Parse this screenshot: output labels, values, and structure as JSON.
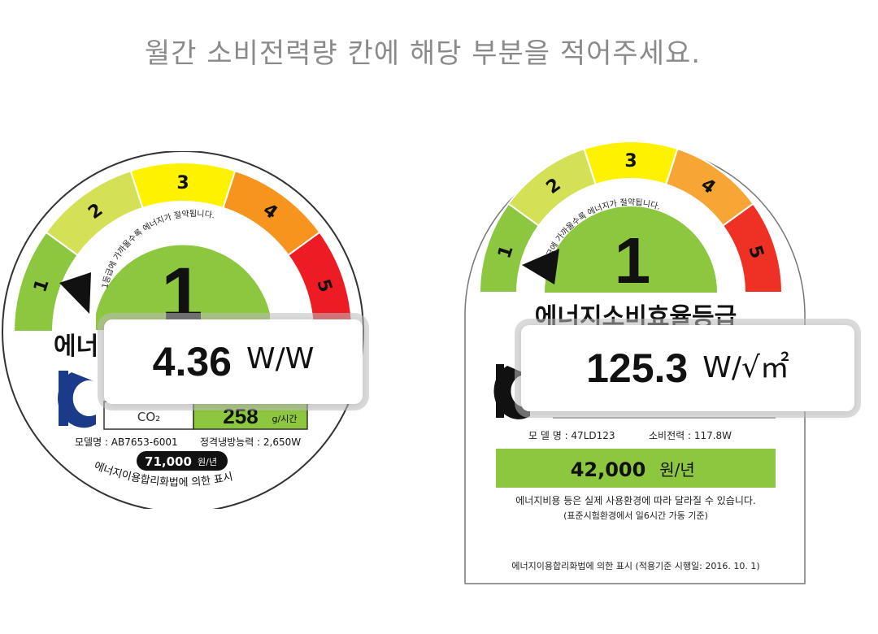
{
  "instruction": "월간 소비전력량 칸에 해당 부분을 적어주세요.",
  "left_label": {
    "grades": [
      "1",
      "2",
      "3",
      "4",
      "5"
    ],
    "grade_colors": [
      "#8dc63f",
      "#d4e157",
      "#fff200",
      "#f7941d",
      "#ed1c24"
    ],
    "current_grade": "1",
    "arc_text": "1등급에 가까울수록 에너지가 절약됩니다.",
    "heading_partial": "에너",
    "co2_label": "CO₂",
    "co2_value": "258",
    "co2_unit": "g/시간",
    "model_label": "모델명 : AB7653-6001",
    "capacity_label": "정격냉방능력 : 2,650W",
    "annual_cost": "71,000",
    "annual_cost_unit": "원/년",
    "footer_arc": "에너지이용합리화법에 의한 표시",
    "overlay_value": "4.36",
    "overlay_unit": "W/W"
  },
  "right_label": {
    "grades": [
      "1",
      "2",
      "3",
      "4",
      "5"
    ],
    "grade_colors": [
      "#8dc63f",
      "#d4e157",
      "#fff200",
      "#f7a535",
      "#ee3124"
    ],
    "current_grade": "1",
    "arc_text": "1등급에 가까울수록 에너지가 절약됩니다.",
    "heading": "에너지소비효율등급",
    "model_label": "모 델 명 : 47LD123",
    "power_label": "소비전력 : 117.8W",
    "annual_cost": "42,000",
    "annual_cost_unit": "원/년",
    "note1": "에너지비용 등은 실제 사용환경에 따라 달라질 수 있습니다.",
    "note2": "(표준시험환경에서 일6시간 가동 기준)",
    "footer": "에너지이용합리화법에 의한 표시 (적용기준 시행일: 2016. 10. 1)",
    "overlay_value": "125.3",
    "overlay_unit": "W/√㎡"
  }
}
